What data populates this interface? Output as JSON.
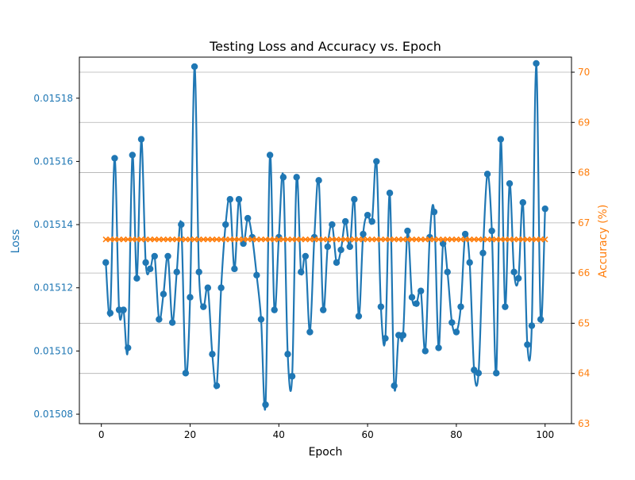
{
  "chart_data": {
    "type": "line",
    "title": "Testing Loss and Accuracy vs. Epoch",
    "xlabel": "Epoch",
    "ylabel_left": "Loss",
    "ylabel_right": "Accuracy (%)",
    "xlim": [
      -4.95,
      105.95
    ],
    "ylim_left": [
      0.015077,
      0.015193
    ],
    "ylim_right": [
      63,
      70.3
    ],
    "x_ticks": [
      0,
      20,
      40,
      60,
      80,
      100
    ],
    "y_ticks_left": [
      0.01508,
      0.0151,
      0.01512,
      0.01514,
      0.01516,
      0.01518
    ],
    "y_ticks_right": [
      63,
      64,
      65,
      66,
      67,
      68,
      69,
      70
    ],
    "grid": "horizontal lines at right-axis ticks",
    "colors": {
      "loss": "#1f77b4",
      "accuracy": "#ff7f0e",
      "grid": "#b0b0b0",
      "axis": "#000000"
    },
    "series": [
      {
        "name": "",
        "axis": "left",
        "marker": "circle",
        "x": [
          1,
          2,
          3,
          4,
          5,
          6,
          7,
          8,
          9,
          10,
          11,
          12,
          13,
          14,
          15,
          16,
          17,
          18,
          19,
          20,
          21,
          22,
          23,
          24,
          25,
          26,
          27,
          28,
          29,
          30,
          31,
          32,
          33,
          34,
          35,
          36,
          37,
          38,
          39,
          40,
          41,
          42,
          43,
          44,
          45,
          46,
          47,
          48,
          49,
          50,
          51,
          52,
          53,
          54,
          55,
          56,
          57,
          58,
          59,
          60,
          61,
          62,
          63,
          64,
          65,
          66,
          67,
          68,
          69,
          70,
          71,
          72,
          73,
          74,
          75,
          76,
          77,
          78,
          79,
          80,
          81,
          82,
          83,
          84,
          85,
          86,
          87,
          88,
          89,
          90,
          91,
          92,
          93,
          94,
          95,
          96,
          97,
          98,
          99,
          100
        ],
        "values": [
          0.015128,
          0.015112,
          0.015161,
          0.015113,
          0.015113,
          0.015101,
          0.015162,
          0.015123,
          0.015167,
          0.015128,
          0.015126,
          0.01513,
          0.01511,
          0.015118,
          0.01513,
          0.015109,
          0.015125,
          0.01514,
          0.015093,
          0.015117,
          0.01519,
          0.015125,
          0.015114,
          0.01512,
          0.015099,
          0.015089,
          0.01512,
          0.01514,
          0.015148,
          0.015126,
          0.015148,
          0.015134,
          0.015142,
          0.015136,
          0.015124,
          0.01511,
          0.015083,
          0.015162,
          0.015113,
          0.015136,
          0.015155,
          0.015099,
          0.015092,
          0.015155,
          0.015125,
          0.01513,
          0.015106,
          0.015136,
          0.015154,
          0.015113,
          0.015133,
          0.01514,
          0.015128,
          0.015132,
          0.015141,
          0.015133,
          0.015148,
          0.015111,
          0.015137,
          0.015143,
          0.015141,
          0.01516,
          0.015114,
          0.015104,
          0.01515,
          0.015089,
          0.015105,
          0.015105,
          0.015138,
          0.015117,
          0.015115,
          0.015119,
          0.0151,
          0.015136,
          0.015144,
          0.015101,
          0.015134,
          0.015125,
          0.015109,
          0.015106,
          0.015114,
          0.015137,
          0.015128,
          0.015094,
          0.015093,
          0.015131,
          0.015156,
          0.015138,
          0.015093,
          0.015167,
          0.015114,
          0.015153,
          0.015125,
          0.015123,
          0.015147,
          0.015102,
          0.015108,
          0.015191,
          0.01511,
          0.015145
        ]
      },
      {
        "name": "",
        "axis": "right",
        "marker": "x",
        "x": [
          1,
          2,
          3,
          4,
          5,
          6,
          7,
          8,
          9,
          10,
          11,
          12,
          13,
          14,
          15,
          16,
          17,
          18,
          19,
          20,
          21,
          22,
          23,
          24,
          25,
          26,
          27,
          28,
          29,
          30,
          31,
          32,
          33,
          34,
          35,
          36,
          37,
          38,
          39,
          40,
          41,
          42,
          43,
          44,
          45,
          46,
          47,
          48,
          49,
          50,
          51,
          52,
          53,
          54,
          55,
          56,
          57,
          58,
          59,
          60,
          61,
          62,
          63,
          64,
          65,
          66,
          67,
          68,
          69,
          70,
          71,
          72,
          73,
          74,
          75,
          76,
          77,
          78,
          79,
          80,
          81,
          82,
          83,
          84,
          85,
          86,
          87,
          88,
          89,
          90,
          91,
          92,
          93,
          94,
          95,
          96,
          97,
          98,
          99,
          100
        ],
        "values": [
          66.67,
          66.67,
          66.67,
          66.67,
          66.67,
          66.67,
          66.67,
          66.67,
          66.67,
          66.67,
          66.67,
          66.67,
          66.67,
          66.67,
          66.67,
          66.67,
          66.67,
          66.67,
          66.67,
          66.67,
          66.67,
          66.67,
          66.67,
          66.67,
          66.67,
          66.67,
          66.67,
          66.67,
          66.67,
          66.67,
          66.67,
          66.67,
          66.67,
          66.67,
          66.67,
          66.67,
          66.67,
          66.67,
          66.67,
          66.67,
          66.67,
          66.67,
          66.67,
          66.67,
          66.67,
          66.67,
          66.67,
          66.67,
          66.67,
          66.67,
          66.67,
          66.67,
          66.67,
          66.67,
          66.67,
          66.67,
          66.67,
          66.67,
          66.67,
          66.67,
          66.67,
          66.67,
          66.67,
          66.67,
          66.67,
          66.67,
          66.67,
          66.67,
          66.67,
          66.67,
          66.67,
          66.67,
          66.67,
          66.67,
          66.67,
          66.67,
          66.67,
          66.67,
          66.67,
          66.67,
          66.67,
          66.67,
          66.67,
          66.67,
          66.67,
          66.67,
          66.67,
          66.67,
          66.67,
          66.67,
          66.67,
          66.67,
          66.67,
          66.67,
          66.67,
          66.67,
          66.67,
          66.67,
          66.67,
          66.67
        ]
      }
    ]
  }
}
